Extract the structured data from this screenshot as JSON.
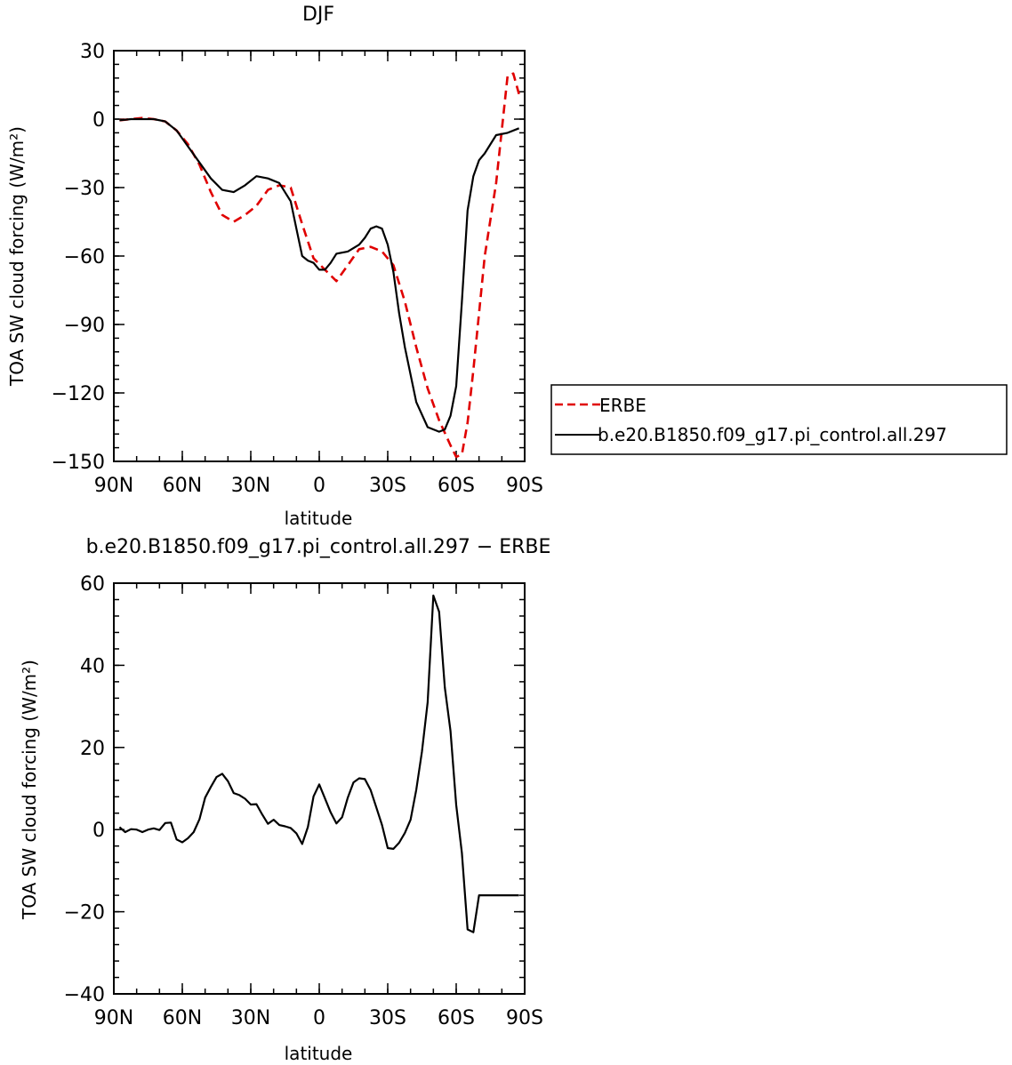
{
  "chart_data": [
    {
      "type": "line",
      "title": "DJF",
      "xlabel": "latitude",
      "ylabel": "TOA SW cloud forcing (W/m²)",
      "ylim": [
        -150,
        30
      ],
      "xlim": [
        -90,
        90
      ],
      "xtick_values": [
        -90,
        -60,
        -30,
        0,
        30,
        60,
        90
      ],
      "xtick_labels": [
        "90N",
        "60N",
        "30N",
        "0",
        "30S",
        "60S",
        "90S"
      ],
      "ytick_values": [
        30,
        0,
        -30,
        -60,
        -90,
        -120,
        -150
      ],
      "ytick_labels": [
        "30",
        "0",
        "−30",
        "−60",
        "−90",
        "−120",
        "−150"
      ],
      "legend": "right",
      "series": [
        {
          "name": "ERBE",
          "color": "#e00000",
          "dash": "dashed",
          "x": [
            -87.5,
            -82.5,
            -77.5,
            -72.5,
            -67.5,
            -62.5,
            -57.5,
            -52.5,
            -47.5,
            -42.5,
            -37.5,
            -32.5,
            -27.5,
            -22.5,
            -17.5,
            -12.5,
            -7.5,
            -2.5,
            2.5,
            7.5,
            12.5,
            17.5,
            22.5,
            27.5,
            32.5,
            37.5,
            42.5,
            47.5,
            52.5,
            57.5,
            60,
            62.5,
            65,
            67.5,
            72.5,
            77.5,
            82.5,
            85,
            87.5
          ],
          "y": [
            -0.5,
            0,
            0.5,
            0,
            -1,
            -5,
            -11,
            -20,
            -32,
            -42,
            -45,
            -42,
            -38,
            -31,
            -29,
            -30,
            -46,
            -61,
            -66,
            -71,
            -64,
            -57,
            -56,
            -58,
            -64,
            -80,
            -100,
            -118,
            -132,
            -143,
            -148,
            -147,
            -133,
            -110,
            -60,
            -28,
            19,
            20,
            11
          ]
        },
        {
          "name": "b.e20.B1850.f09_g17.pi_control.all.297",
          "color": "#000000",
          "dash": "solid",
          "x": [
            -87.5,
            -82.5,
            -77.5,
            -72.5,
            -67.5,
            -62.5,
            -57.5,
            -52.5,
            -47.5,
            -42.5,
            -37.5,
            -32.5,
            -27.5,
            -22.5,
            -17.5,
            -12.5,
            -10,
            -7.5,
            -5,
            -2.5,
            0,
            2.5,
            5,
            7.5,
            12.5,
            17.5,
            20,
            22.5,
            25,
            27.5,
            30,
            32.5,
            35,
            37.5,
            42.5,
            47.5,
            52.5,
            55,
            57.5,
            60,
            62.5,
            65,
            67.5,
            70,
            72.5,
            77.5,
            82.5,
            87.5
          ],
          "y": [
            -0.5,
            0,
            0,
            0,
            -1,
            -5,
            -12,
            -19,
            -26,
            -31,
            -32,
            -29,
            -25,
            -26,
            -28,
            -36,
            -48,
            -60,
            -62,
            -63,
            -66,
            -66,
            -63,
            -59,
            -58,
            -55,
            -52,
            -48,
            -47,
            -48,
            -55,
            -67,
            -85,
            -100,
            -124,
            -135,
            -137,
            -136,
            -130,
            -117,
            -80,
            -40,
            -25,
            -18,
            -15,
            -7,
            -6,
            -4
          ]
        }
      ]
    },
    {
      "type": "line",
      "title": "b.e20.B1850.f09_g17.pi_control.all.297 − ERBE",
      "xlabel": "latitude",
      "ylabel": "TOA SW cloud forcing (W/m²)",
      "ylim": [
        -40,
        60
      ],
      "xlim": [
        -90,
        90
      ],
      "xtick_values": [
        -90,
        -60,
        -30,
        0,
        30,
        60,
        90
      ],
      "xtick_labels": [
        "90N",
        "60N",
        "30N",
        "0",
        "30S",
        "60S",
        "90S"
      ],
      "ytick_values": [
        60,
        40,
        20,
        0,
        -20,
        -40
      ],
      "ytick_labels": [
        "60",
        "40",
        "20",
        "0",
        "−20",
        "−40"
      ],
      "series": [
        {
          "color": "#000000",
          "dash": "solid",
          "x": [
            -87.5,
            -85,
            -82.5,
            -80,
            -77.5,
            -75,
            -72.5,
            -70,
            -67.5,
            -65,
            -62.5,
            -60,
            -57.5,
            -55,
            -52.5,
            -50,
            -47.5,
            -45,
            -42.5,
            -40,
            -37.5,
            -35,
            -32.5,
            -30,
            -27.5,
            -25,
            -22.5,
            -20,
            -17.5,
            -15,
            -12.5,
            -10,
            -7.5,
            -5,
            -2.5,
            0,
            2.5,
            5,
            7.5,
            10,
            12.5,
            15,
            17.5,
            20,
            22.5,
            25,
            27.5,
            30,
            32.5,
            35,
            37.5,
            40,
            42.5,
            45,
            47.5,
            50,
            52.5,
            55,
            57.5,
            60,
            62.5,
            65,
            67.5,
            70,
            72.5,
            75,
            77.5,
            80,
            82.5,
            85,
            87.5
          ],
          "y": [
            0.6,
            -0.6,
            0.1,
            0,
            -0.6,
            0,
            0.3,
            -0.1,
            1.6,
            1.7,
            -2.4,
            -3.1,
            -2.1,
            -0.6,
            2.5,
            7.8,
            10.4,
            12.8,
            13.6,
            11.8,
            8.9,
            8.4,
            7.5,
            6.1,
            6.2,
            3.7,
            1.4,
            2.4,
            1.1,
            0.8,
            0.4,
            -0.9,
            -3.5,
            0.6,
            8.1,
            11,
            7.6,
            4.2,
            1.5,
            3,
            7.8,
            11.5,
            12.5,
            12.3,
            9.6,
            5.4,
            1.1,
            -4.5,
            -4.7,
            -3.2,
            -0.8,
            2.4,
            9.7,
            19,
            31,
            57,
            53,
            34.6,
            24,
            6,
            -5.7,
            -24.3,
            -25,
            -16,
            -16,
            -16,
            -16,
            -16,
            -16,
            -16,
            -16
          ]
        }
      ]
    }
  ]
}
